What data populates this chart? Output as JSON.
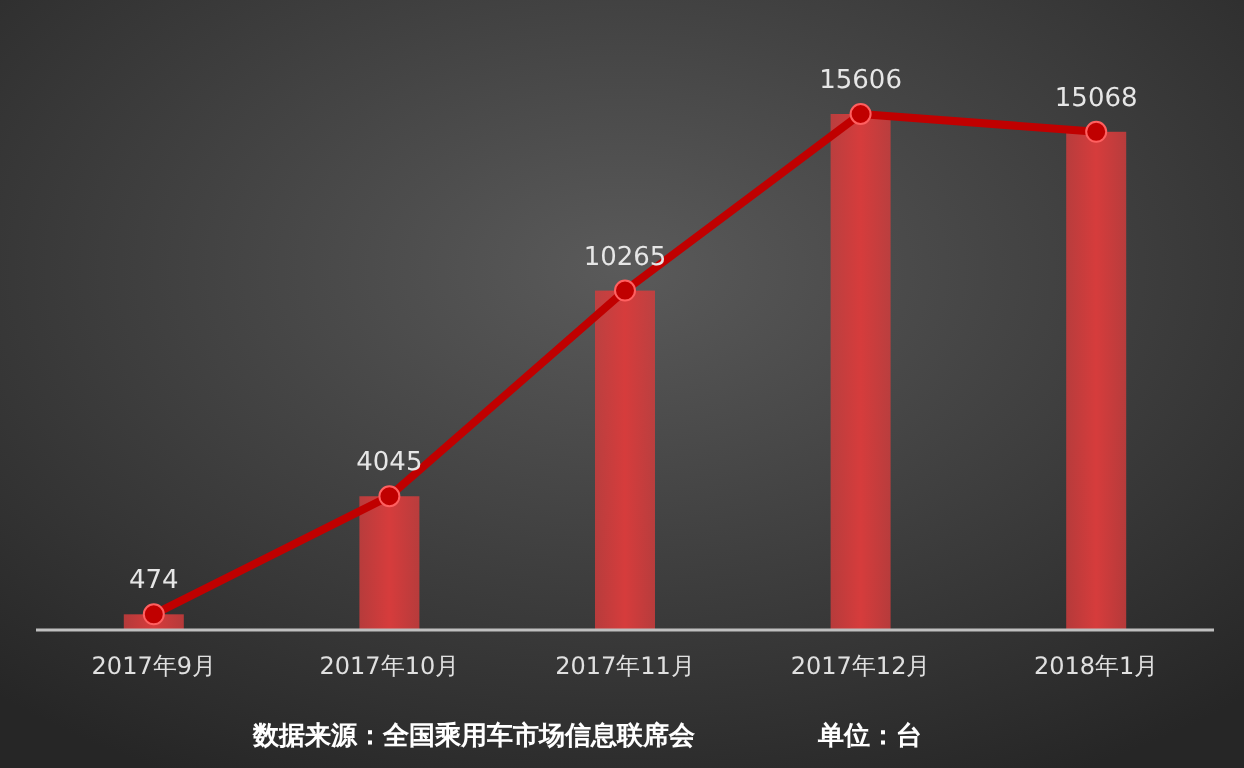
{
  "chart_data": {
    "type": "bar",
    "categories": [
      "2017年9月",
      "2017年10月",
      "2017年11月",
      "2017年12月",
      "2018年1月"
    ],
    "series": [
      {
        "color": "#d63c3c",
        "values": [
          474,
          4045,
          10265,
          15606,
          15068
        ]
      },
      {
        "type": "line",
        "color": "#c00000",
        "values": [
          474,
          4045,
          10265,
          15606,
          15068
        ],
        "value_labels": [
          "474",
          "4045",
          "10265",
          "15606",
          "15068"
        ]
      }
    ],
    "marker": "circle",
    "line_style": "solid",
    "annotations": [
      "数据来源：全国乘用车市场信息联席会",
      "单位：台"
    ]
  }
}
